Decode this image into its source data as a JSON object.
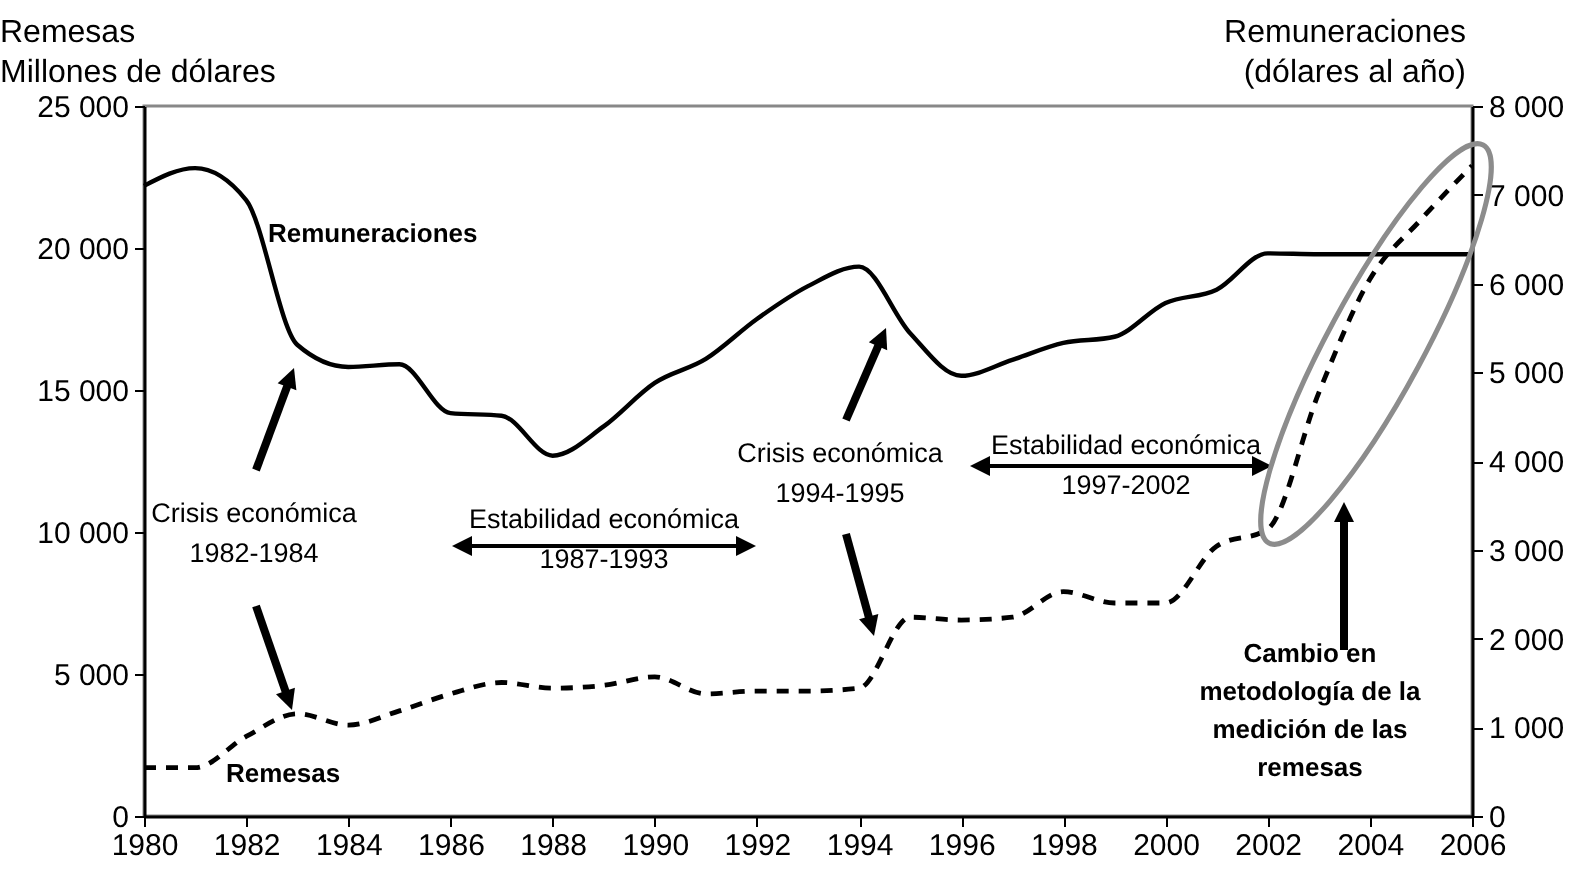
{
  "chart_data": {
    "type": "line",
    "ylabel": "Remesas\nMillones de dólares",
    "y2label": "Remuneraciones\n(dólares al año)",
    "x": [
      1980,
      1981,
      1982,
      1983,
      1984,
      1985,
      1986,
      1987,
      1988,
      1989,
      1990,
      1991,
      1992,
      1993,
      1994,
      1995,
      1996,
      1997,
      1998,
      1999,
      2000,
      2001,
      2002,
      2003,
      2004,
      2005,
      2006
    ],
    "series": [
      {
        "name": "Remuneraciones",
        "color": "#000000",
        "axis": "y2",
        "line_style": "solid",
        "values": [
          7100,
          7300,
          6940,
          5310,
          5060,
          5090,
          4540,
          4510,
          4060,
          4390,
          4880,
          5150,
          5600,
          5970,
          6190,
          5440,
          4960,
          5140,
          5330,
          5400,
          5780,
          5930,
          6340,
          6330,
          6330,
          6330,
          6330
        ]
      },
      {
        "name": "Remesas",
        "color": "#000000",
        "line_style": "dashed",
        "values": [
          1700,
          1700,
          2800,
          3600,
          3200,
          3700,
          4300,
          4700,
          4500,
          4600,
          4900,
          4300,
          4400,
          4400,
          4500,
          7000,
          6900,
          7000,
          7900,
          7500,
          7500,
          9500,
          10100,
          14900,
          18900,
          21000,
          22900
        ]
      }
    ],
    "xlim": [
      1980,
      2006
    ],
    "xticks": [
      1980,
      1982,
      1984,
      1986,
      1988,
      1990,
      1992,
      1994,
      1996,
      1998,
      2000,
      2002,
      2004,
      2006
    ],
    "ylim": [
      0,
      25000
    ],
    "yticks": [
      0,
      {
        "value": 5000,
        "label": "5 000"
      },
      {
        "value": 10000,
        "label": "10 000"
      },
      {
        "value": 15000,
        "label": "15 000"
      },
      {
        "value": 20000,
        "label": "20 000"
      },
      {
        "value": 25000,
        "label": "25 000"
      }
    ],
    "y2lim": [
      0,
      8000
    ],
    "y2ticks": [
      0,
      {
        "value": 1000,
        "label": "1 000"
      },
      {
        "value": 2000,
        "label": "2 000"
      },
      {
        "value": 3000,
        "label": "3 000"
      },
      {
        "value": 4000,
        "label": "4 000"
      },
      {
        "value": 5000,
        "label": "5 000"
      },
      {
        "value": 6000,
        "label": "6 000"
      },
      {
        "value": 7000,
        "label": "7 000"
      },
      {
        "value": 8000,
        "label": "8 000"
      }
    ],
    "annotations": [
      "Crisis económica\n1982-1984",
      "Estabilidad económica\n1987-1993",
      "Crisis económica\n1994-1995",
      "Estabilidad económica\n1997-2002",
      "Cambio en\nmetodología de la\nmedición de las\nremesas"
    ],
    "grid": false,
    "marker": "none"
  }
}
